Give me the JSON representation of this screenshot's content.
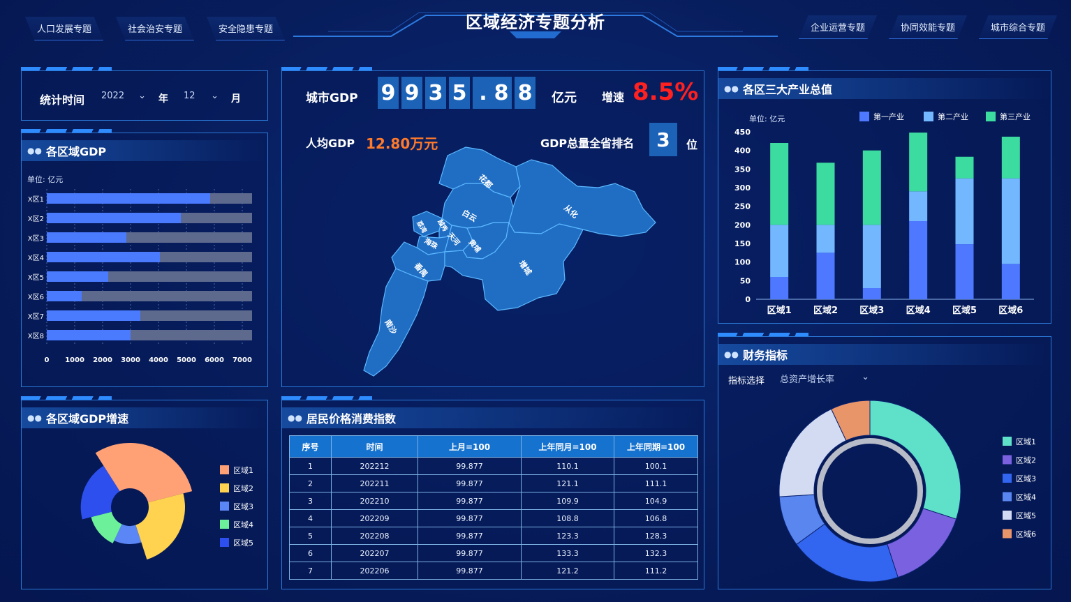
{
  "header": {
    "title": "区域经济专题分析",
    "left_tabs": [
      "人口发展专题",
      "社会治安专题",
      "安全隐患专题"
    ],
    "right_tabs": [
      "企业运营专题",
      "协同效能专题",
      "城市综合专题"
    ]
  },
  "stat_time": {
    "label": "统计时间",
    "year": "2022",
    "year_unit": "年",
    "month": "12",
    "month_unit": "月"
  },
  "gdp_summary": {
    "city_gdp_label": "城市GDP",
    "digits": [
      "9",
      "9",
      "3",
      "5",
      ".",
      "8",
      "8"
    ],
    "unit": "亿元",
    "growth_label": "增速",
    "growth": "8.5%",
    "per_capita_label": "人均GDP",
    "per_capita": "12.80万元",
    "rank_label": "GDP总量全省排名",
    "rank": "3",
    "rank_unit": "位"
  },
  "map": {
    "districts": [
      "花都",
      "白云",
      "从化",
      "越秀",
      "荔湾",
      "海珠",
      "天河",
      "黄埔",
      "番禺",
      "增城",
      "南沙"
    ],
    "colors": {
      "fill": "#1f6ec4",
      "stroke": "#5cb8ff"
    }
  },
  "region_gdp": {
    "title": "各区域GDP",
    "unit_label": "单位: 亿元"
  },
  "region_growth": {
    "title": "各区域GDP增速"
  },
  "cpi": {
    "title": "居民价格消费指数",
    "headers": [
      "序号",
      "时间",
      "上月=100",
      "上年同月=100",
      "上年同期=100"
    ],
    "rows": [
      [
        "1",
        "202212",
        "99.877",
        "110.1",
        "100.1"
      ],
      [
        "2",
        "202211",
        "99.877",
        "121.1",
        "111.1"
      ],
      [
        "3",
        "202210",
        "99.877",
        "109.9",
        "104.9"
      ],
      [
        "4",
        "202209",
        "99.877",
        "108.8",
        "106.8"
      ],
      [
        "5",
        "202208",
        "99.877",
        "123.3",
        "128.3"
      ],
      [
        "6",
        "202207",
        "99.877",
        "133.3",
        "132.3"
      ],
      [
        "7",
        "202206",
        "99.877",
        "121.2",
        "111.2"
      ]
    ]
  },
  "industry": {
    "title": "各区三大产业总值",
    "unit_label": "单位: 亿元"
  },
  "finance": {
    "title": "财务指标",
    "select_label": "指标选择",
    "select_value": "总资产增长率"
  },
  "chart_data": [
    {
      "id": "region_gdp",
      "type": "bar",
      "orientation": "horizontal",
      "categories": [
        "X区1",
        "X区2",
        "X区3",
        "X区4",
        "X区5",
        "X区6",
        "X区7",
        "X区8"
      ],
      "series": [
        {
          "values": [
            5850,
            4800,
            2850,
            4050,
            2200,
            1250,
            3350,
            3000
          ]
        },
        {
          "values": [
            7350,
            7350,
            7350,
            7350,
            7350,
            7350,
            7350,
            7350
          ]
        }
      ],
      "xlim": [
        0,
        7000
      ],
      "xticks": [
        0,
        1000,
        2000,
        3000,
        4000,
        5000,
        6000,
        7000
      ],
      "colors": [
        "#4a7bff",
        "#5d6a8e"
      ]
    },
    {
      "id": "industry",
      "type": "bar",
      "stacked": true,
      "categories": [
        "区域1",
        "区域2",
        "区域3",
        "区域4",
        "区域5",
        "区域6"
      ],
      "series": [
        {
          "name": "第一产业",
          "values": [
            60,
            125,
            30,
            210,
            148,
            95
          ]
        },
        {
          "name": "第二产业",
          "values": [
            140,
            75,
            170,
            80,
            177,
            230
          ]
        },
        {
          "name": "第三产业",
          "values": [
            220,
            167,
            200,
            158,
            58,
            112
          ]
        }
      ],
      "ylim": [
        0,
        450
      ],
      "yticks": [
        0,
        50,
        100,
        150,
        200,
        250,
        300,
        350,
        400,
        450
      ],
      "colors": [
        "#4d78ff",
        "#73b8ff",
        "#3cdca0"
      ],
      "legend": "top-right"
    },
    {
      "id": "region_growth",
      "type": "pie",
      "variant": "rose",
      "labels": [
        "区域1",
        "区域2",
        "区域3",
        "区域4",
        "区域5"
      ],
      "values": [
        30,
        24,
        12,
        14,
        20
      ],
      "colors": [
        "#ffa075",
        "#ffd24f",
        "#5b86f5",
        "#6df09a",
        "#2d4fee"
      ],
      "legend": "right"
    },
    {
      "id": "finance",
      "type": "pie",
      "variant": "donut",
      "labels": [
        "区域1",
        "区域2",
        "区域3",
        "区域4",
        "区域5",
        "区域6"
      ],
      "values": [
        30,
        15,
        20,
        9,
        19,
        7
      ],
      "colors": [
        "#5fe0c9",
        "#7a61e0",
        "#3366f0",
        "#5a86f0",
        "#d2dbf2",
        "#e8956a"
      ],
      "legend": "right"
    }
  ]
}
